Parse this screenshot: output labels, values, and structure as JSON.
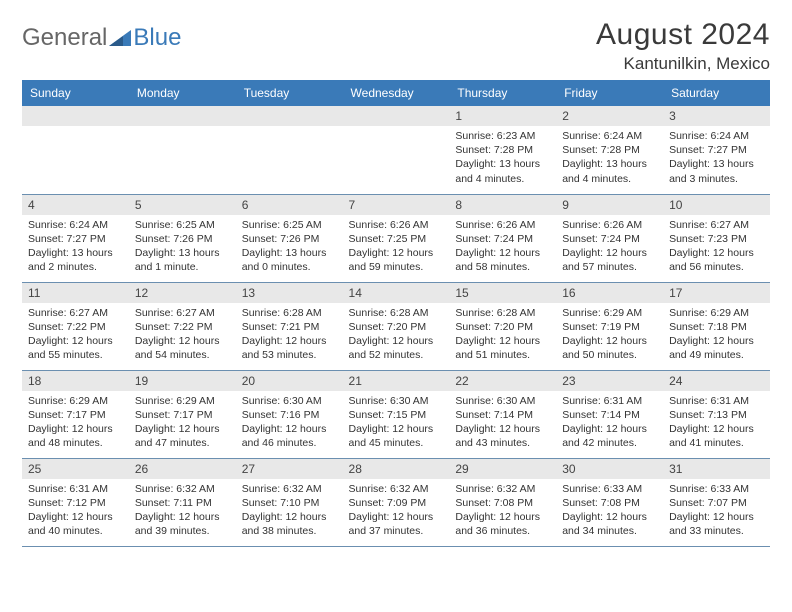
{
  "logo": {
    "general": "General",
    "blue": "Blue"
  },
  "title": "August 2024",
  "location": "Kantunilkin, Mexico",
  "colors": {
    "header_bg": "#3a7ab8",
    "header_text": "#ffffff",
    "daybar_bg": "#e8e8e8",
    "border": "#6b8fb0",
    "text": "#333333",
    "logo_gray": "#666666",
    "logo_blue": "#3a7ab8"
  },
  "weekdays": [
    "Sunday",
    "Monday",
    "Tuesday",
    "Wednesday",
    "Thursday",
    "Friday",
    "Saturday"
  ],
  "weeks": [
    [
      null,
      null,
      null,
      null,
      {
        "n": "1",
        "sr": "6:23 AM",
        "ss": "7:28 PM",
        "dl": "13 hours and 4 minutes."
      },
      {
        "n": "2",
        "sr": "6:24 AM",
        "ss": "7:28 PM",
        "dl": "13 hours and 4 minutes."
      },
      {
        "n": "3",
        "sr": "6:24 AM",
        "ss": "7:27 PM",
        "dl": "13 hours and 3 minutes."
      }
    ],
    [
      {
        "n": "4",
        "sr": "6:24 AM",
        "ss": "7:27 PM",
        "dl": "13 hours and 2 minutes."
      },
      {
        "n": "5",
        "sr": "6:25 AM",
        "ss": "7:26 PM",
        "dl": "13 hours and 1 minute."
      },
      {
        "n": "6",
        "sr": "6:25 AM",
        "ss": "7:26 PM",
        "dl": "13 hours and 0 minutes."
      },
      {
        "n": "7",
        "sr": "6:26 AM",
        "ss": "7:25 PM",
        "dl": "12 hours and 59 minutes."
      },
      {
        "n": "8",
        "sr": "6:26 AM",
        "ss": "7:24 PM",
        "dl": "12 hours and 58 minutes."
      },
      {
        "n": "9",
        "sr": "6:26 AM",
        "ss": "7:24 PM",
        "dl": "12 hours and 57 minutes."
      },
      {
        "n": "10",
        "sr": "6:27 AM",
        "ss": "7:23 PM",
        "dl": "12 hours and 56 minutes."
      }
    ],
    [
      {
        "n": "11",
        "sr": "6:27 AM",
        "ss": "7:22 PM",
        "dl": "12 hours and 55 minutes."
      },
      {
        "n": "12",
        "sr": "6:27 AM",
        "ss": "7:22 PM",
        "dl": "12 hours and 54 minutes."
      },
      {
        "n": "13",
        "sr": "6:28 AM",
        "ss": "7:21 PM",
        "dl": "12 hours and 53 minutes."
      },
      {
        "n": "14",
        "sr": "6:28 AM",
        "ss": "7:20 PM",
        "dl": "12 hours and 52 minutes."
      },
      {
        "n": "15",
        "sr": "6:28 AM",
        "ss": "7:20 PM",
        "dl": "12 hours and 51 minutes."
      },
      {
        "n": "16",
        "sr": "6:29 AM",
        "ss": "7:19 PM",
        "dl": "12 hours and 50 minutes."
      },
      {
        "n": "17",
        "sr": "6:29 AM",
        "ss": "7:18 PM",
        "dl": "12 hours and 49 minutes."
      }
    ],
    [
      {
        "n": "18",
        "sr": "6:29 AM",
        "ss": "7:17 PM",
        "dl": "12 hours and 48 minutes."
      },
      {
        "n": "19",
        "sr": "6:29 AM",
        "ss": "7:17 PM",
        "dl": "12 hours and 47 minutes."
      },
      {
        "n": "20",
        "sr": "6:30 AM",
        "ss": "7:16 PM",
        "dl": "12 hours and 46 minutes."
      },
      {
        "n": "21",
        "sr": "6:30 AM",
        "ss": "7:15 PM",
        "dl": "12 hours and 45 minutes."
      },
      {
        "n": "22",
        "sr": "6:30 AM",
        "ss": "7:14 PM",
        "dl": "12 hours and 43 minutes."
      },
      {
        "n": "23",
        "sr": "6:31 AM",
        "ss": "7:14 PM",
        "dl": "12 hours and 42 minutes."
      },
      {
        "n": "24",
        "sr": "6:31 AM",
        "ss": "7:13 PM",
        "dl": "12 hours and 41 minutes."
      }
    ],
    [
      {
        "n": "25",
        "sr": "6:31 AM",
        "ss": "7:12 PM",
        "dl": "12 hours and 40 minutes."
      },
      {
        "n": "26",
        "sr": "6:32 AM",
        "ss": "7:11 PM",
        "dl": "12 hours and 39 minutes."
      },
      {
        "n": "27",
        "sr": "6:32 AM",
        "ss": "7:10 PM",
        "dl": "12 hours and 38 minutes."
      },
      {
        "n": "28",
        "sr": "6:32 AM",
        "ss": "7:09 PM",
        "dl": "12 hours and 37 minutes."
      },
      {
        "n": "29",
        "sr": "6:32 AM",
        "ss": "7:08 PM",
        "dl": "12 hours and 36 minutes."
      },
      {
        "n": "30",
        "sr": "6:33 AM",
        "ss": "7:08 PM",
        "dl": "12 hours and 34 minutes."
      },
      {
        "n": "31",
        "sr": "6:33 AM",
        "ss": "7:07 PM",
        "dl": "12 hours and 33 minutes."
      }
    ]
  ],
  "labels": {
    "sunrise": "Sunrise:",
    "sunset": "Sunset:",
    "daylight": "Daylight:"
  }
}
